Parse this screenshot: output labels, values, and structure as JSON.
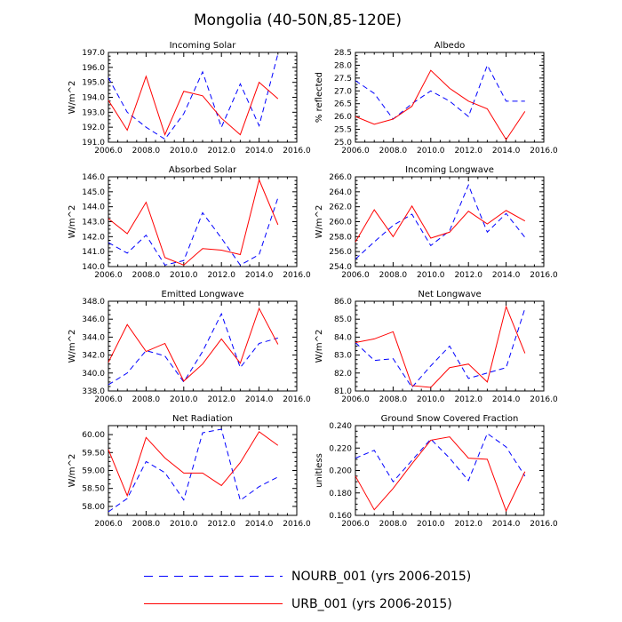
{
  "title": "Mongolia (40-50N,85-120E)",
  "legend": [
    {
      "label": "NOURB_001 (yrs 2006-2015)",
      "color": "#0000ff",
      "style": "dashed"
    },
    {
      "label": "URB_001 (yrs 2006-2015)",
      "color": "#ff0000",
      "style": "solid"
    }
  ],
  "chart_data": [
    {
      "type": "line",
      "title": "Incoming Solar",
      "ylabel": "W/m^2",
      "x": [
        2006,
        2007,
        2008,
        2009,
        2010,
        2011,
        2012,
        2013,
        2014,
        2015
      ],
      "xlim": [
        2006,
        2016
      ],
      "xticks": [
        "2006.0",
        "2008.0",
        "2010.0",
        "2012.0",
        "2014.0",
        "2016.0"
      ],
      "ylim": [
        191,
        197
      ],
      "yticks": [
        "191.0",
        "192.0",
        "193.0",
        "194.0",
        "195.0",
        "196.0",
        "197.0"
      ],
      "series": [
        {
          "name": "NOURB_001",
          "values": [
            195.3,
            193.0,
            192.0,
            191.2,
            192.9,
            195.7,
            192.0,
            194.9,
            192.1,
            196.9
          ]
        },
        {
          "name": "URB_001",
          "values": [
            193.8,
            191.8,
            195.4,
            191.5,
            194.4,
            194.1,
            192.6,
            191.5,
            195.0,
            193.9
          ]
        }
      ]
    },
    {
      "type": "line",
      "title": "Albedo",
      "ylabel": "% reflected",
      "x": [
        2006,
        2007,
        2008,
        2009,
        2010,
        2011,
        2012,
        2013,
        2014,
        2015
      ],
      "xlim": [
        2006,
        2016
      ],
      "xticks": [
        "2006.0",
        "2008.0",
        "2010.0",
        "2012.0",
        "2014.0",
        "2016.0"
      ],
      "ylim": [
        25,
        28.5
      ],
      "yticks": [
        "25.0",
        "25.5",
        "26.0",
        "26.5",
        "27.0",
        "27.5",
        "28.0",
        "28.5"
      ],
      "series": [
        {
          "name": "NOURB_001",
          "values": [
            27.4,
            26.9,
            25.9,
            26.5,
            27.0,
            26.6,
            26.0,
            28.0,
            26.6,
            26.6
          ]
        },
        {
          "name": "URB_001",
          "values": [
            26.0,
            25.7,
            25.9,
            26.4,
            27.8,
            27.1,
            26.6,
            26.3,
            25.1,
            26.2
          ]
        }
      ]
    },
    {
      "type": "line",
      "title": "Absorbed Solar",
      "ylabel": "W/m^2",
      "x": [
        2006,
        2007,
        2008,
        2009,
        2010,
        2011,
        2012,
        2013,
        2014,
        2015
      ],
      "xlim": [
        2006,
        2016
      ],
      "xticks": [
        "2006.0",
        "2008.0",
        "2010.0",
        "2012.0",
        "2014.0",
        "2016.0"
      ],
      "ylim": [
        140,
        146
      ],
      "yticks": [
        "140.0",
        "141.0",
        "142.0",
        "143.0",
        "144.0",
        "145.0",
        "146.0"
      ],
      "series": [
        {
          "name": "NOURB_001",
          "values": [
            141.6,
            140.9,
            142.1,
            140.1,
            140.4,
            143.6,
            141.9,
            140.1,
            140.8,
            144.6
          ]
        },
        {
          "name": "URB_001",
          "values": [
            143.2,
            142.2,
            144.3,
            140.6,
            140.1,
            141.2,
            141.1,
            140.8,
            145.8,
            142.8
          ]
        }
      ]
    },
    {
      "type": "line",
      "title": "Incoming Longwave",
      "ylabel": "W/m^2",
      "x": [
        2006,
        2007,
        2008,
        2009,
        2010,
        2011,
        2012,
        2013,
        2014,
        2015
      ],
      "xlim": [
        2006,
        2016
      ],
      "xticks": [
        "2006.0",
        "2008.0",
        "2010.0",
        "2012.0",
        "2014.0",
        "2016.0"
      ],
      "ylim": [
        254,
        266
      ],
      "yticks": [
        "254.0",
        "256.0",
        "258.0",
        "260.0",
        "262.0",
        "264.0",
        "266.0"
      ],
      "series": [
        {
          "name": "NOURB_001",
          "values": [
            255.0,
            257.3,
            259.5,
            261.0,
            256.8,
            258.8,
            264.9,
            258.6,
            261.1,
            257.9
          ]
        },
        {
          "name": "URB_001",
          "values": [
            257.3,
            261.6,
            258.0,
            262.1,
            257.8,
            258.6,
            261.4,
            259.7,
            261.5,
            260.1
          ]
        }
      ]
    },
    {
      "type": "line",
      "title": "Emitted Longwave",
      "ylabel": "W/m^2",
      "x": [
        2006,
        2007,
        2008,
        2009,
        2010,
        2011,
        2012,
        2013,
        2014,
        2015
      ],
      "xlim": [
        2006,
        2016
      ],
      "xticks": [
        "2006.0",
        "2008.0",
        "2010.0",
        "2012.0",
        "2014.0",
        "2016.0"
      ],
      "ylim": [
        338,
        348
      ],
      "yticks": [
        "338.0",
        "340.0",
        "342.0",
        "344.0",
        "346.0",
        "348.0"
      ],
      "series": [
        {
          "name": "NOURB_001",
          "values": [
            338.7,
            340.0,
            342.5,
            341.9,
            339.0,
            342.4,
            346.6,
            340.6,
            343.3,
            343.9
          ]
        },
        {
          "name": "URB_001",
          "values": [
            341.2,
            345.4,
            342.4,
            343.3,
            339.1,
            341.0,
            343.8,
            341.1,
            347.2,
            343.2
          ]
        }
      ]
    },
    {
      "type": "line",
      "title": "Net Longwave",
      "ylabel": "W/m^2",
      "x": [
        2006,
        2007,
        2008,
        2009,
        2010,
        2011,
        2012,
        2013,
        2014,
        2015
      ],
      "xlim": [
        2006,
        2016
      ],
      "xticks": [
        "2006.0",
        "2008.0",
        "2010.0",
        "2012.0",
        "2014.0",
        "2016.0"
      ],
      "ylim": [
        81,
        86
      ],
      "yticks": [
        "81.0",
        "82.0",
        "83.0",
        "84.0",
        "85.0",
        "86.0"
      ],
      "series": [
        {
          "name": "NOURB_001",
          "values": [
            83.7,
            82.7,
            82.8,
            81.2,
            82.4,
            83.5,
            81.7,
            82.0,
            82.3,
            85.6
          ]
        },
        {
          "name": "URB_001",
          "values": [
            83.7,
            83.9,
            84.3,
            81.3,
            81.2,
            82.3,
            82.5,
            81.5,
            85.7,
            83.1
          ]
        }
      ]
    },
    {
      "type": "line",
      "title": "Net Radiation",
      "ylabel": "W/m^2",
      "x": [
        2006,
        2007,
        2008,
        2009,
        2010,
        2011,
        2012,
        2013,
        2014,
        2015
      ],
      "xlim": [
        2006,
        2016
      ],
      "xticks": [
        "2006.0",
        "2008.0",
        "2010.0",
        "2012.0",
        "2014.0",
        "2016.0"
      ],
      "ylim": [
        57.75,
        60.25
      ],
      "yticks": [
        "58.00",
        "58.50",
        "59.00",
        "59.50",
        "60.00"
      ],
      "series": [
        {
          "name": "NOURB_001",
          "values": [
            57.85,
            58.22,
            59.25,
            58.94,
            58.18,
            60.05,
            60.15,
            58.17,
            58.55,
            58.82
          ]
        },
        {
          "name": "URB_001",
          "values": [
            59.58,
            58.3,
            59.92,
            59.35,
            58.93,
            58.93,
            58.58,
            59.22,
            60.08,
            59.7
          ]
        }
      ]
    },
    {
      "type": "line",
      "title": "Ground Snow Covered Fraction",
      "ylabel": "unitless",
      "x": [
        2006,
        2007,
        2008,
        2009,
        2010,
        2011,
        2012,
        2013,
        2014,
        2015
      ],
      "xlim": [
        2006,
        2016
      ],
      "xticks": [
        "2006.0",
        "2008.0",
        "2010.0",
        "2012.0",
        "2014.0",
        "2016.0"
      ],
      "ylim": [
        0.16,
        0.24
      ],
      "yticks": [
        "0.160",
        "0.180",
        "0.200",
        "0.220",
        "0.240"
      ],
      "series": [
        {
          "name": "NOURB_001",
          "values": [
            0.211,
            0.218,
            0.19,
            0.209,
            0.228,
            0.211,
            0.191,
            0.233,
            0.221,
            0.195
          ]
        },
        {
          "name": "URB_001",
          "values": [
            0.195,
            0.165,
            0.184,
            0.206,
            0.227,
            0.23,
            0.211,
            0.21,
            0.164,
            0.199
          ]
        }
      ]
    }
  ]
}
